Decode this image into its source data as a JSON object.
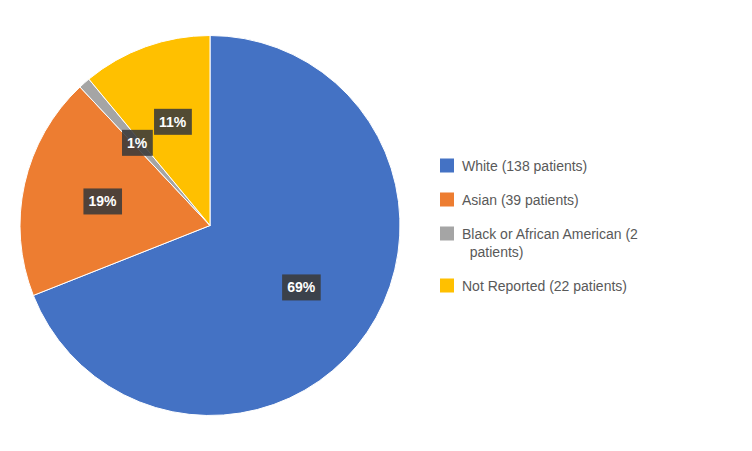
{
  "chart_data": {
    "type": "pie",
    "categories": [
      "White (138 patients)",
      "Asian (39 patients)",
      "Black or African American (2\n  patients)",
      "Not Reported (22 patients)"
    ],
    "values": [
      69,
      19,
      1,
      11
    ],
    "value_labels": [
      "69%",
      "19%",
      "1%",
      "11%"
    ],
    "colors": [
      "#4472C4",
      "#ED7D31",
      "#A5A5A5",
      "#FFC000"
    ],
    "data_labels": true,
    "legend": "right"
  }
}
